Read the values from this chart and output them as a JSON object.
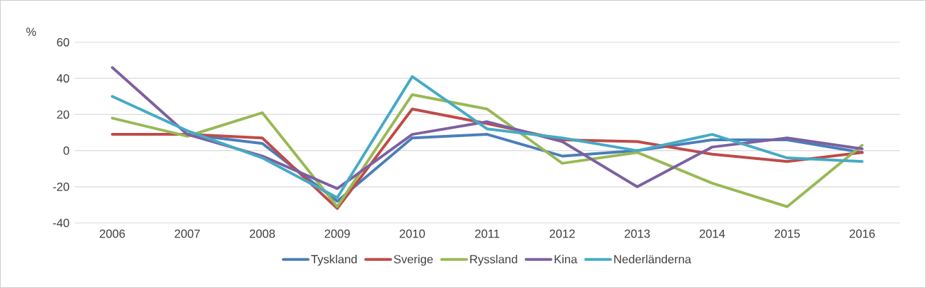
{
  "chart_data": {
    "type": "line",
    "ylabel": "%",
    "categories": [
      "2006",
      "2007",
      "2008",
      "2009",
      "2010",
      "2011",
      "2012",
      "2013",
      "2014",
      "2015",
      "2016"
    ],
    "series": [
      {
        "name": "Tyskland",
        "color": "#4a7ebb",
        "values": [
          null,
          9,
          4,
          -28,
          7,
          9,
          -3,
          0,
          6,
          6,
          -1
        ]
      },
      {
        "name": "Sverige",
        "color": "#be4b48",
        "values": [
          9,
          9,
          7,
          -32,
          23,
          15,
          6,
          5,
          -2,
          -6,
          -1
        ]
      },
      {
        "name": "Ryssland",
        "color": "#98b954",
        "values": [
          18,
          8,
          21,
          -31,
          31,
          23,
          -7,
          -1,
          -18,
          -31,
          3
        ]
      },
      {
        "name": "Kina",
        "color": "#7d60a0",
        "values": [
          46,
          9,
          -3,
          -21,
          9,
          16,
          5,
          -20,
          2,
          7,
          1
        ]
      },
      {
        "name": "Nederländerna",
        "color": "#46aac5",
        "values": [
          30,
          11,
          -4,
          -26,
          41,
          12,
          7,
          0,
          9,
          -4,
          -6
        ]
      }
    ],
    "ylim": [
      -40,
      60
    ],
    "yticks": [
      -40,
      -20,
      0,
      20,
      40,
      60
    ],
    "grid": "y",
    "legend": "bottom",
    "marker": "none",
    "line_style": "solid"
  }
}
